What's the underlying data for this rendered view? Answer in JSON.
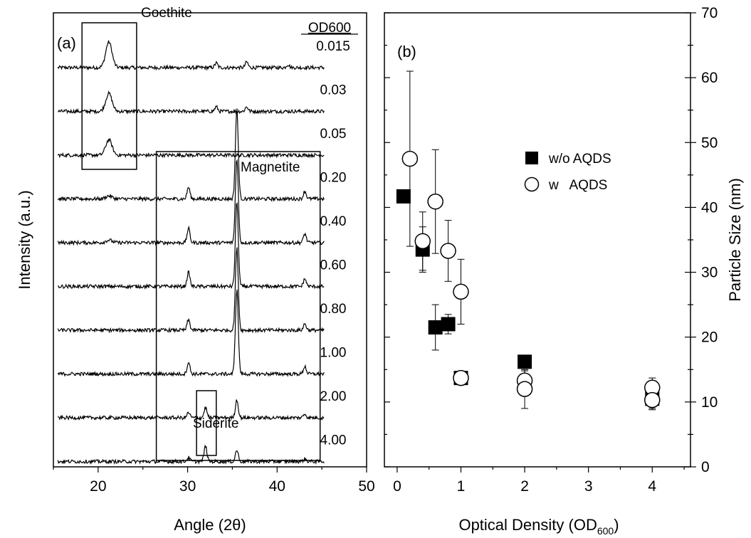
{
  "chart_data": [
    {
      "type": "line",
      "panel_label": "(a)",
      "xlabel": "Angle (2θ)",
      "ylabel": "Intensity (a.u.)",
      "xlim": [
        15,
        50
      ],
      "x_ticks": [
        "20",
        "30",
        "40",
        "50"
      ],
      "legend_header": "OD600",
      "series": [
        {
          "od": "0.015",
          "goethite": 1.0,
          "magnetite_1": 0.0,
          "magnetite_2": 0.0,
          "magnetite_3": 0.0,
          "minor_33": 0.18,
          "minor_37": 0.22,
          "minor_41": 0.12,
          "siderite": 0.0
        },
        {
          "od": "0.03",
          "goethite": 0.7,
          "magnetite_1": 0.0,
          "magnetite_2": 0.0,
          "magnetite_3": 0.0,
          "minor_33": 0.18,
          "minor_37": 0.18,
          "minor_41": 0.0,
          "siderite": 0.0
        },
        {
          "od": "0.05",
          "goethite": 0.6,
          "magnetite_1": 0.0,
          "magnetite_2": 0.0,
          "magnetite_3": 0.0,
          "minor_33": 0.0,
          "minor_37": 0.0,
          "minor_41": 0.0,
          "siderite": 0.0
        },
        {
          "od": "0.20",
          "goethite": 0.12,
          "magnetite_1": 0.45,
          "magnetite_2": 3.5,
          "magnetite_3": 0.3,
          "minor_33": 0.0,
          "minor_37": 0.0,
          "minor_41": 0.0,
          "siderite": 0.0
        },
        {
          "od": "0.40",
          "goethite": 0.1,
          "magnetite_1": 0.55,
          "magnetite_2": 3.3,
          "magnetite_3": 0.35,
          "minor_33": 0.0,
          "minor_37": 0.0,
          "minor_41": 0.0,
          "siderite": 0.0
        },
        {
          "od": "0.60",
          "goethite": 0.0,
          "magnetite_1": 0.55,
          "magnetite_2": 3.3,
          "magnetite_3": 0.3,
          "minor_33": 0.0,
          "minor_37": 0.0,
          "minor_41": 0.0,
          "siderite": 0.0
        },
        {
          "od": "0.80",
          "goethite": 0.0,
          "magnetite_1": 0.4,
          "magnetite_2": 3.2,
          "magnetite_3": 0.25,
          "minor_33": 0.0,
          "minor_37": 0.0,
          "minor_41": 0.0,
          "siderite": 0.0
        },
        {
          "od": "1.00",
          "goethite": 0.0,
          "magnetite_1": 0.45,
          "magnetite_2": 3.3,
          "magnetite_3": 0.3,
          "minor_33": 0.0,
          "minor_37": 0.0,
          "minor_41": 0.0,
          "siderite": 0.0
        },
        {
          "od": "2.00",
          "goethite": 0.0,
          "magnetite_1": 0.2,
          "magnetite_2": 0.7,
          "magnetite_3": 0.15,
          "minor_33": 0.0,
          "minor_37": 0.0,
          "minor_41": 0.0,
          "siderite": 0.4
        },
        {
          "od": "4.00",
          "goethite": 0.0,
          "magnetite_1": 0.15,
          "magnetite_2": 0.45,
          "magnetite_3": 0.1,
          "minor_33": 0.0,
          "minor_37": 0.0,
          "minor_41": 0.0,
          "siderite": 0.6
        }
      ],
      "peak_positions": {
        "goethite": 21.2,
        "magnetite_1": 30.1,
        "magnetite_2": 35.5,
        "magnetite_3": 43.1,
        "minor_33": 33.2,
        "minor_37": 36.6,
        "minor_41": 41.2,
        "siderite": 32.0
      },
      "annotations": [
        {
          "label": "Goethite",
          "x_range": [
            18.2,
            24.3
          ]
        },
        {
          "label": "Magnetite",
          "x_range": [
            26.5,
            44.8
          ]
        },
        {
          "label": "Siderite",
          "x_range": [
            31.0,
            33.2
          ]
        }
      ]
    },
    {
      "type": "scatter",
      "panel_label": "(b)",
      "xlabel": "Optical Density (OD",
      "xlabel_sub": "600",
      "xlabel_close": ")",
      "ylabel": "Particle Size (nm)",
      "xlim": [
        -0.2,
        4.6
      ],
      "ylim": [
        0,
        70
      ],
      "x_ticks": [
        "0",
        "1",
        "2",
        "3",
        "4"
      ],
      "y_ticks": [
        "0",
        "10",
        "20",
        "30",
        "40",
        "50",
        "60",
        "70"
      ],
      "legend_position": "top-right",
      "series": [
        {
          "name": "w/o AQDS",
          "marker": "filled-square",
          "points": [
            {
              "x": 0.1,
              "y": 41.7,
              "err": 0
            },
            {
              "x": 0.4,
              "y": 33.5,
              "err": 3.5
            },
            {
              "x": 0.6,
              "y": 21.5,
              "err": 3.5
            },
            {
              "x": 0.8,
              "y": 22.0,
              "err": 1.5
            },
            {
              "x": 1.0,
              "y": 13.7,
              "err": 1.0
            },
            {
              "x": 2.0,
              "y": 16.2,
              "err": 0
            },
            {
              "x": 4.0,
              "y": 10.5,
              "err": 1.5
            }
          ]
        },
        {
          "name": "w AQDS",
          "marker": "open-circle",
          "points": [
            {
              "x": 0.2,
              "y": 47.5,
              "err": 13.5
            },
            {
              "x": 0.4,
              "y": 34.8,
              "err": 4.5
            },
            {
              "x": 0.6,
              "y": 40.9,
              "err": 8.0
            },
            {
              "x": 0.8,
              "y": 33.3,
              "err": 4.7
            },
            {
              "x": 1.0,
              "y": 27.0,
              "err": 5.0
            },
            {
              "x": 1.0,
              "y": 13.7,
              "err": 1.0
            },
            {
              "x": 2.0,
              "y": 13.3,
              "err": 1.5
            },
            {
              "x": 2.0,
              "y": 12.0,
              "err": 3.0
            },
            {
              "x": 4.0,
              "y": 12.2,
              "err": 1.5
            },
            {
              "x": 4.0,
              "y": 10.3,
              "err": 1.5
            }
          ]
        }
      ]
    }
  ]
}
